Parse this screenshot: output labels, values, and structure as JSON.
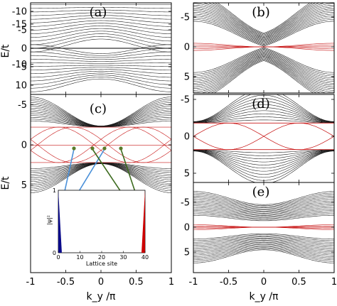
{
  "colors": {
    "bulk": "#1a1a1a",
    "edge": "#c81818",
    "arrow_blue": "#4a90d9",
    "arrow_green": "#3d6b1f",
    "dot": "#5a7a2a",
    "inset_left": "#0a0a8a",
    "inset_right": "#cc0000"
  },
  "chart_data": [
    {
      "panel_label": "(a)",
      "type": "line",
      "xlim": [
        -1,
        1
      ],
      "ylim": [
        -12,
        12
      ],
      "yticks": [
        "10",
        "5",
        "0",
        "-5",
        "-10"
      ],
      "ylabel": "E/t",
      "bands": "gapped",
      "edge_states": "flat at E=0"
    },
    {
      "panel_label": "(b)",
      "type": "line",
      "xlim": [
        -1,
        1
      ],
      "ylim": [
        -8,
        8
      ],
      "yticks": [
        "5",
        "0",
        "-5"
      ],
      "bands": "gap closes at k_y=0",
      "edge_states": "near E=0"
    },
    {
      "panel_label": "(c)",
      "type": "line",
      "xlim": [
        -1,
        1
      ],
      "ylim": [
        -16,
        7
      ],
      "yticks": [
        "5",
        "0",
        "-5",
        "-10",
        "-15"
      ],
      "xticks": [
        "-1",
        "-0.5",
        "0",
        "0.5",
        "1"
      ],
      "xlabel": "k_y /π",
      "ylabel": "E/t",
      "edge_states": "crossing dispersive edge modes"
    },
    {
      "panel_label": "(d)",
      "type": "line",
      "xlim": [
        -1,
        1
      ],
      "ylim": [
        -6,
        6
      ],
      "yticks": [
        "5",
        "0",
        "-5"
      ],
      "edge_states": "in-gap crossings"
    },
    {
      "panel_label": "(e)",
      "type": "line",
      "xlim": [
        -1,
        1
      ],
      "ylim": [
        -8,
        8
      ],
      "yticks": [
        "5",
        "0",
        "-5"
      ],
      "xticks": [
        "-1",
        "-0.5",
        "0",
        "0.5",
        "1"
      ],
      "xlabel": "k_y /π",
      "edge_states": "near E=0"
    },
    {
      "type": "bar",
      "role": "inset",
      "xlabel": "Lattice site",
      "ylabel": "|ψ|²",
      "xticks": [
        "0",
        "10",
        "20",
        "30",
        "40"
      ],
      "yticks": [
        "0",
        "1"
      ],
      "left_peak_site": 1,
      "right_peak_site": 40
    }
  ]
}
